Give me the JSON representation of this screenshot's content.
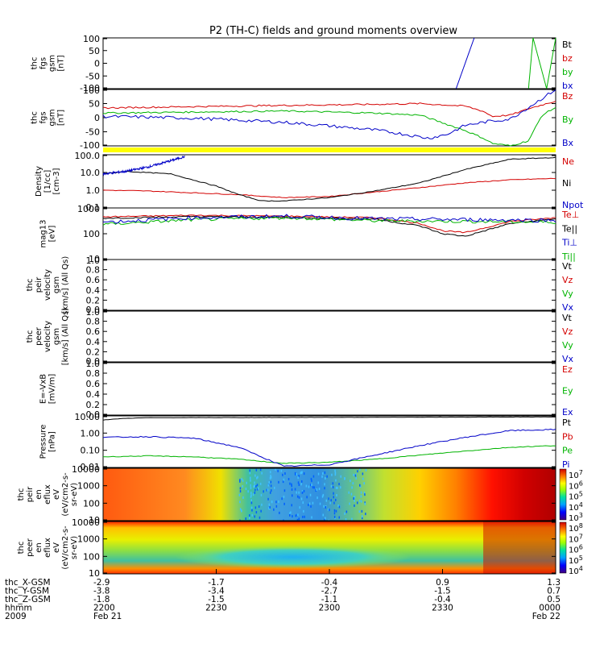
{
  "title": "P2 (TH-C) fields and ground moments overview",
  "chart_data": {
    "type": "line",
    "title": "P2 (TH-C) fields and ground moments overview",
    "panels": [
      {
        "id": "fgs",
        "ylabel": [
          "thc",
          "fgs",
          "gsm",
          "[nT]"
        ],
        "yscale": "linear",
        "ylim": [
          -100,
          100
        ],
        "yticks": [
          "100",
          "50",
          "0",
          "-50",
          "-100"
        ],
        "legend": [
          {
            "text": "Bt",
            "color": "#000000"
          },
          {
            "text": "bz",
            "color": "#d40000"
          },
          {
            "text": "by",
            "color": "#00b400"
          },
          {
            "text": "bx",
            "color": "#0000c8"
          }
        ]
      },
      {
        "id": "fgl",
        "ylabel": [
          "thc",
          "fgs",
          "gsm",
          "[nT]"
        ],
        "yscale": "linear",
        "ylim": [
          -120,
          100
        ],
        "yticks": [
          "100",
          "50",
          "0",
          "-50",
          "-100"
        ],
        "legend": [
          {
            "text": "Bz",
            "color": "#d40000"
          },
          {
            "text": "By",
            "color": "#00b400"
          },
          {
            "text": "Bx",
            "color": "#0000c8"
          }
        ]
      },
      {
        "id": "density",
        "ylabel": [
          "Density",
          "[1/cc]",
          "[cm-3]"
        ],
        "yscale": "log",
        "ylim": [
          0.05,
          200
        ],
        "yticks": [
          "100.0",
          "10.0",
          "1.0",
          "0.1"
        ],
        "legend": [
          {
            "text": "Ne",
            "color": "#d40000"
          },
          {
            "text": "Ni",
            "color": "#000000"
          },
          {
            "text": "Npot",
            "color": "#0000c8"
          }
        ]
      },
      {
        "id": "temp",
        "ylabel": [
          "mag13",
          "[eV]"
        ],
        "yscale": "log",
        "ylim": [
          10,
          1000
        ],
        "yticks": [
          "1000",
          "100",
          "10"
        ],
        "legend": [
          {
            "text": "Te⊥",
            "color": "#d40000"
          },
          {
            "text": "Te||",
            "color": "#000000"
          },
          {
            "text": "Ti⊥",
            "color": "#0000c8"
          },
          {
            "text": "Ti||",
            "color": "#00b400"
          }
        ]
      },
      {
        "id": "peir_vel",
        "ylabel": [
          "thc",
          "peir",
          "velocity",
          "gsm",
          "[km/s] (All Qs)"
        ],
        "yscale": "linear",
        "ylim": [
          0,
          1
        ],
        "yticks": [
          "1.0",
          "0.8",
          "0.6",
          "0.4",
          "0.2",
          "0.0"
        ],
        "legend": [
          {
            "text": "Vt",
            "color": "#000000"
          },
          {
            "text": "Vz",
            "color": "#d40000"
          },
          {
            "text": "Vy",
            "color": "#00b400"
          },
          {
            "text": "Vx",
            "color": "#0000c8"
          }
        ]
      },
      {
        "id": "peer_vel",
        "ylabel": [
          "thc",
          "peer",
          "velocity",
          "gsm",
          "[km/s] (All Qs)"
        ],
        "yscale": "linear",
        "ylim": [
          0,
          1
        ],
        "yticks": [
          "1.0",
          "0.8",
          "0.6",
          "0.4",
          "0.2",
          "0.0"
        ],
        "legend": [
          {
            "text": "Vt",
            "color": "#000000"
          },
          {
            "text": "Vz",
            "color": "#d40000"
          },
          {
            "text": "Vy",
            "color": "#00b400"
          },
          {
            "text": "Vx",
            "color": "#0000c8"
          }
        ]
      },
      {
        "id": "efield",
        "ylabel": [
          "E=-VxB",
          "[mV/m]"
        ],
        "yscale": "linear",
        "ylim": [
          0,
          1
        ],
        "yticks": [
          "1.0",
          "0.8",
          "0.6",
          "0.4",
          "0.2",
          "0.0"
        ],
        "legend": [
          {
            "text": "Ez",
            "color": "#d40000"
          },
          {
            "text": "Ey",
            "color": "#00b400"
          },
          {
            "text": "Ex",
            "color": "#0000c8"
          }
        ]
      },
      {
        "id": "pressure",
        "ylabel": [
          "Pressure",
          "[nPa]"
        ],
        "yscale": "log",
        "ylim": [
          0.005,
          30
        ],
        "yticks": [
          "10.00",
          "1.00",
          "0.10",
          "0.01"
        ],
        "legend": [
          {
            "text": "Pt",
            "color": "#000000"
          },
          {
            "text": "Pb",
            "color": "#d40000"
          },
          {
            "text": "Pe",
            "color": "#00b400"
          },
          {
            "text": "Pi",
            "color": "#0000c8"
          }
        ]
      },
      {
        "id": "peir_spec",
        "ylabel": [
          "thc",
          "peir",
          "en",
          "eflux",
          "eV",
          "(eV/cm2-s-",
          "sr-eV)"
        ],
        "yticks": [
          "10000",
          "1000",
          "100",
          "10"
        ],
        "colorbar": [
          {
            "base": "10",
            "exp": "7"
          },
          {
            "base": "10",
            "exp": "6"
          },
          {
            "base": "10",
            "exp": "5"
          },
          {
            "base": "10",
            "exp": "4"
          },
          {
            "base": "10",
            "exp": "3"
          }
        ]
      },
      {
        "id": "peer_spec",
        "ylabel": [
          "thc",
          "peer",
          "en",
          "eflux",
          "eV",
          "(eV/cm2-s-",
          "sr-eV)"
        ],
        "yticks": [
          "10000",
          "1000",
          "100",
          "10"
        ],
        "colorbar": [
          {
            "base": "10",
            "exp": "8"
          },
          {
            "base": "10",
            "exp": "7"
          },
          {
            "base": "10",
            "exp": "6"
          },
          {
            "base": "10",
            "exp": "5"
          },
          {
            "base": "10",
            "exp": "4"
          }
        ]
      }
    ],
    "series": {
      "fgs_bx": {
        "t": [
          78,
          82
        ],
        "y": [
          -100,
          100
        ]
      },
      "fgs_by": {
        "t": [
          94,
          95,
          98,
          100
        ],
        "y": [
          -100,
          100,
          -100,
          100
        ]
      },
      "fgl_bz": {
        "t": [
          0,
          20,
          40,
          60,
          70,
          80,
          84,
          86,
          90,
          94,
          100
        ],
        "y": [
          28,
          33,
          38,
          42,
          45,
          35,
          15,
          -5,
          0,
          25,
          55
        ]
      },
      "fgl_by": {
        "t": [
          0,
          20,
          40,
          60,
          70,
          75,
          80,
          84,
          86,
          90,
          94,
          97,
          100
        ],
        "y": [
          8,
          12,
          16,
          8,
          0,
          -30,
          -60,
          -90,
          -110,
          -120,
          -100,
          0,
          30
        ]
      },
      "fgl_bx": {
        "t": [
          0,
          10,
          20,
          30,
          40,
          50,
          60,
          65,
          70,
          72,
          76,
          80,
          85,
          90,
          94,
          100
        ],
        "y": [
          -5,
          -8,
          -12,
          -20,
          -28,
          -42,
          -58,
          -70,
          -85,
          -90,
          -75,
          -40,
          -25,
          -15,
          30,
          100
        ]
      },
      "dens_ni": {
        "t": [
          0,
          5,
          15,
          25,
          30,
          35,
          40,
          50,
          60,
          70,
          80,
          90,
          100
        ],
        "y": [
          10,
          15,
          10,
          1.5,
          0.4,
          0.15,
          0.15,
          0.25,
          0.7,
          2.5,
          20,
          100,
          130
        ]
      },
      "dens_ne": {
        "t": [
          0,
          10,
          30,
          40,
          50,
          60,
          70,
          80,
          90,
          100
        ],
        "y": [
          0.8,
          0.7,
          0.4,
          0.25,
          0.3,
          0.6,
          1.2,
          2.5,
          4,
          5
        ]
      },
      "dens_npot": {
        "t": [
          0,
          5,
          10,
          15,
          18
        ],
        "y": [
          10,
          15,
          30,
          80,
          150
        ]
      },
      "temp_te_perp": {
        "t": [
          0,
          20,
          40,
          60,
          70,
          75,
          80,
          90,
          100
        ],
        "y": [
          450,
          520,
          480,
          420,
          250,
          130,
          110,
          300,
          420
        ]
      },
      "temp_te_par": {
        "t": [
          0,
          20,
          40,
          60,
          70,
          75,
          80,
          90,
          100
        ],
        "y": [
          400,
          460,
          430,
          370,
          200,
          100,
          80,
          250,
          380
        ]
      },
      "temp_ti_perp": {
        "t": [
          0,
          20,
          40,
          60,
          100
        ],
        "y": [
          280,
          420,
          480,
          380,
          330
        ]
      },
      "temp_ti_par": {
        "t": [
          0,
          20,
          40,
          60,
          100
        ],
        "y": [
          230,
          350,
          420,
          320,
          280
        ]
      },
      "press_pt": {
        "t": [
          0,
          5,
          10,
          100
        ],
        "y": [
          15,
          20,
          22,
          25
        ]
      },
      "press_pi": {
        "t": [
          0,
          10,
          20,
          30,
          40,
          50,
          60,
          70,
          80,
          90,
          100
        ],
        "y": [
          0.8,
          0.9,
          0.7,
          0.15,
          0.006,
          0.008,
          0.04,
          0.2,
          0.8,
          2.5,
          3
        ]
      },
      "press_pe": {
        "t": [
          0,
          10,
          20,
          30,
          40,
          50,
          60,
          70,
          80,
          90,
          100
        ],
        "y": [
          0.03,
          0.035,
          0.03,
          0.02,
          0.01,
          0.012,
          0.02,
          0.04,
          0.08,
          0.15,
          0.2
        ]
      }
    },
    "xaxis": {
      "tick_positions": [
        0,
        25,
        50,
        75,
        100
      ],
      "rows": [
        {
          "label": "thc_X-GSM",
          "values": [
            "-2.9",
            "-1.7",
            "-0.4",
            "0.9",
            "1.3"
          ]
        },
        {
          "label": "thc_Y-GSM",
          "values": [
            "-3.8",
            "-3.4",
            "-2.7",
            "-1.5",
            "0.7"
          ]
        },
        {
          "label": "thc_Z-GSM",
          "values": [
            "-1.8",
            "-1.5",
            "-1.1",
            "-0.4",
            "0.5"
          ]
        },
        {
          "label": "hhmm",
          "values": [
            "2200",
            "2230",
            "2300",
            "2330",
            "0000"
          ]
        },
        {
          "label": "2009",
          "values": [
            "Feb 21",
            "",
            "",
            "",
            "Feb 22"
          ]
        }
      ]
    }
  }
}
